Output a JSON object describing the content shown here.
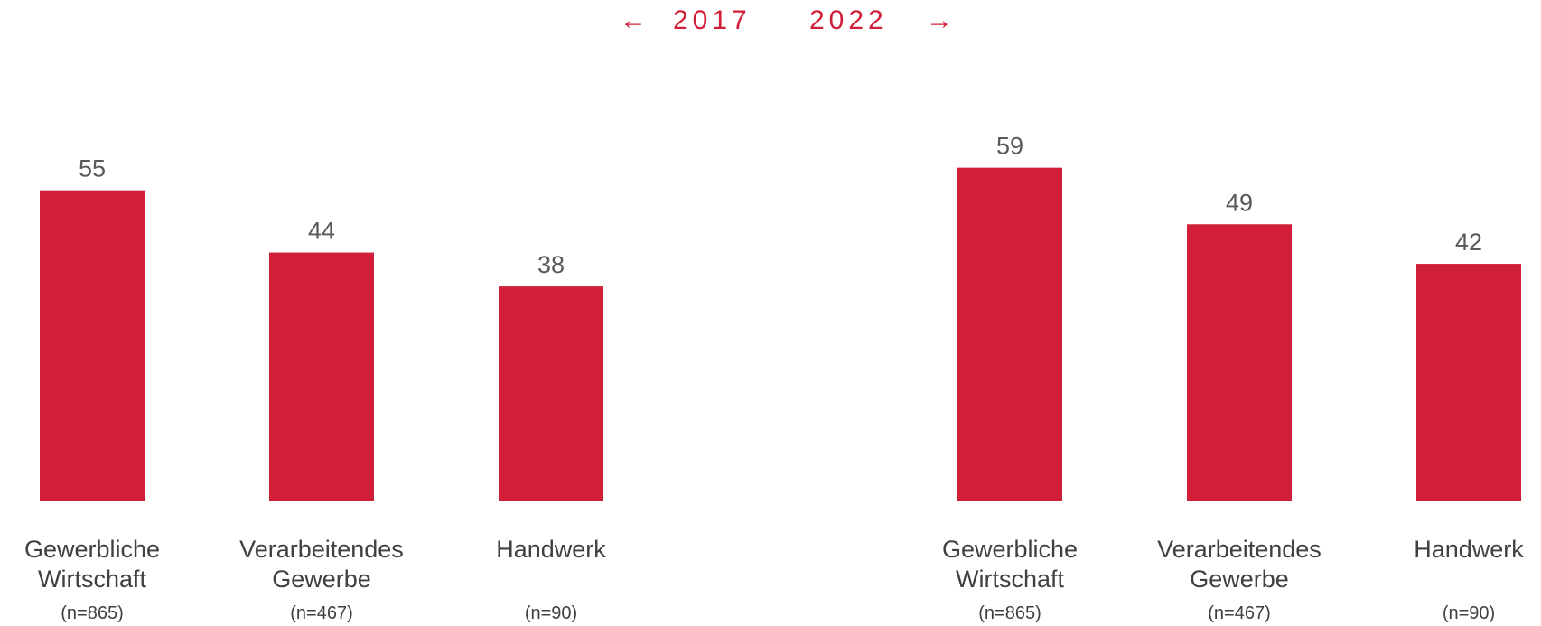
{
  "header": {
    "arrow_left": "←",
    "year_left": "2017",
    "year_right": "2022",
    "arrow_right": "→"
  },
  "colors": {
    "bar": "#d11f3a",
    "accent": "#d11f3a",
    "value_label": "#595959",
    "category_label": "#404040"
  },
  "chart_data": [
    {
      "type": "bar",
      "categories": [
        [
          "Gewerbliche",
          "Wirtschaft"
        ],
        [
          "Verarbeitendes",
          "Gewerbe"
        ],
        [
          "Handwerk"
        ]
      ],
      "sample_sizes": [
        "(n=865)",
        "(n=467)",
        "(n=90)"
      ],
      "values": [
        55,
        44,
        38
      ],
      "ylim": [
        0,
        60
      ]
    },
    {
      "type": "bar",
      "categories": [
        [
          "Gewerbliche",
          "Wirtschaft"
        ],
        [
          "Verarbeitendes",
          "Gewerbe"
        ],
        [
          "Handwerk"
        ]
      ],
      "sample_sizes": [
        "(n=865)",
        "(n=467)",
        "(n=90)"
      ],
      "values": [
        59,
        49,
        42
      ],
      "ylim": [
        0,
        60
      ]
    }
  ]
}
